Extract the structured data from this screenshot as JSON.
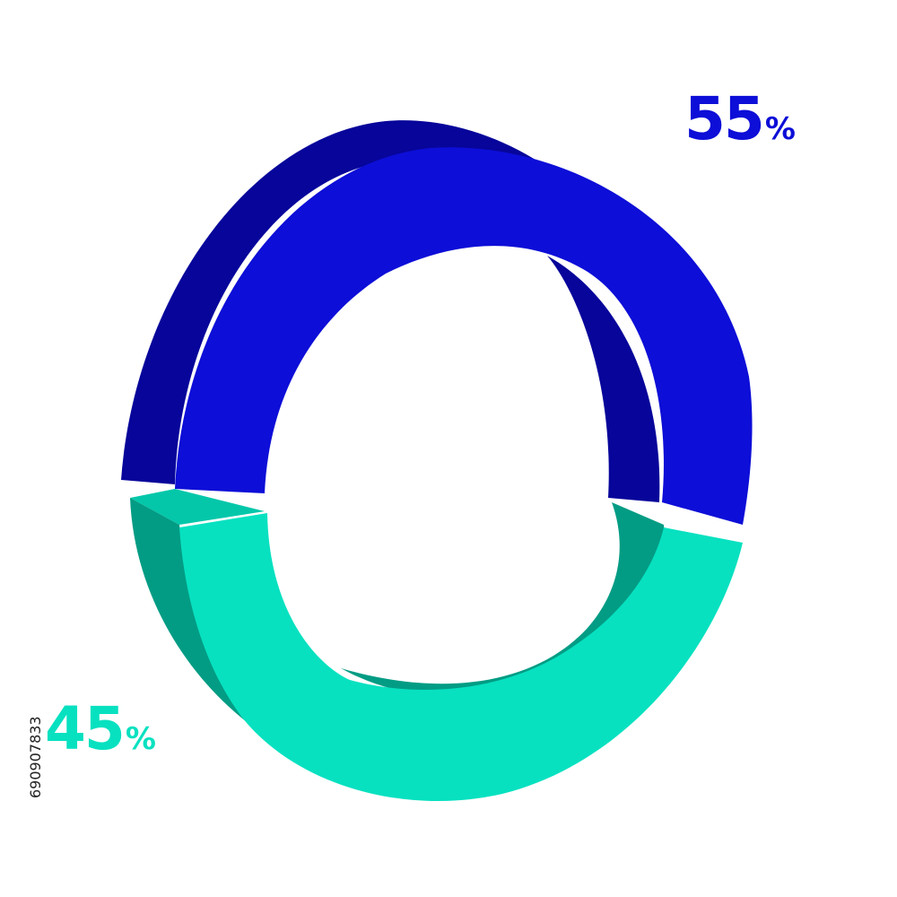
{
  "chart_data": {
    "type": "pie",
    "style": "3d-donut",
    "slices": [
      {
        "value": 55,
        "label_num": "55",
        "label_unit": "%",
        "color": "#0d0ed7",
        "side_color": "#07059a"
      },
      {
        "value": 45,
        "label_num": "45",
        "label_unit": "%",
        "color": "#07e1c0",
        "side_color": "#029c84"
      }
    ]
  },
  "watermark": {
    "text": "690907833"
  }
}
